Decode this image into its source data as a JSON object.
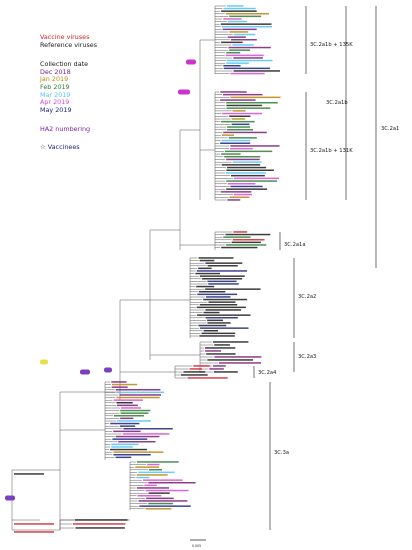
{
  "legend": {
    "vaccine_viruses": "Vaccine viruses",
    "reference_viruses": "Reference viruses",
    "collection_date": "Collection date",
    "dates": [
      "Dec 2018",
      "Jan 2019",
      "Feb 2019",
      "Mar 2019",
      "Apr 2019",
      "May 2019"
    ],
    "ha2_numbering": "HA2 numbering",
    "vaccinees": "☆ Vaccinees"
  },
  "colors": {
    "vaccine": "#d0202a",
    "reference": "#1a1a1a",
    "dec_2018": "#7a1a7a",
    "jan_2019": "#b8860b",
    "feb_2019": "#2e7d32",
    "mar_2019": "#4fc3f7",
    "apr_2019": "#d54ad5",
    "may_2019": "#1a237e",
    "ha2": "#7b1fa2",
    "marker_highlight": "#cc33cc",
    "marker_purple": "#7b3fbf",
    "marker_yellow": "#e8e04a"
  },
  "clades": [
    "3C.2a1b + 135K",
    "3C.2a1b",
    "3C.2a1",
    "3C.2a1b + 131K",
    "3C.2a1a",
    "3C.2a2",
    "3C.2a3",
    "3C.2a4",
    "3C.3a"
  ],
  "scale_bar_label": "0.005"
}
